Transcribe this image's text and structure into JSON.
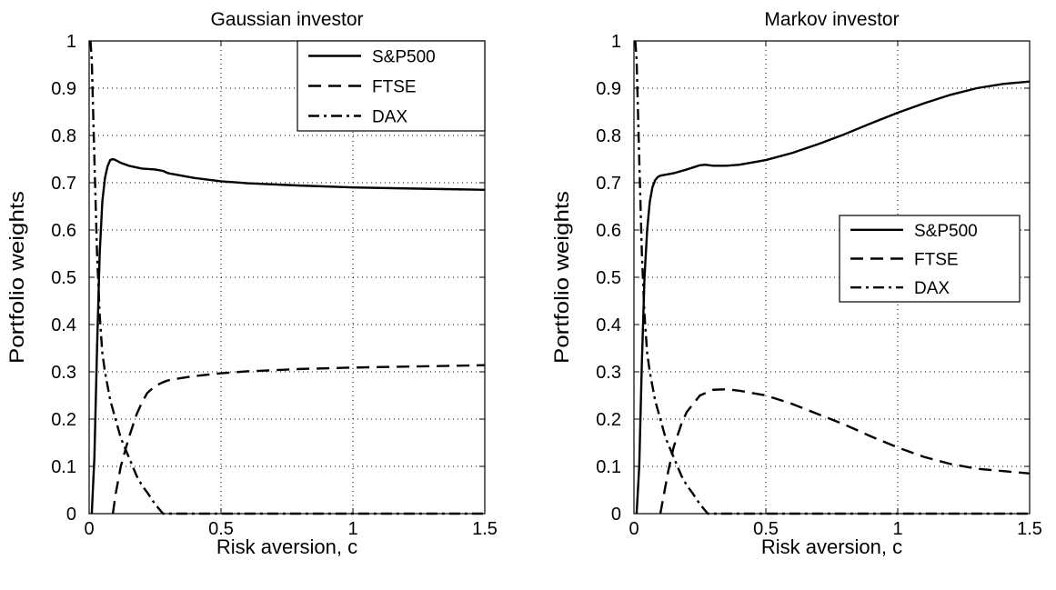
{
  "chart_data": [
    {
      "type": "line",
      "title": "Gaussian investor",
      "xlabel": "Risk aversion, c",
      "ylabel": "Portfolio weights",
      "xlim": [
        0,
        1.5
      ],
      "ylim": [
        0,
        1
      ],
      "xticks": [
        0,
        0.5,
        1,
        1.5
      ],
      "xtick_labels": [
        "0",
        "0.5",
        "1",
        "1.5"
      ],
      "yticks": [
        0,
        0.1,
        0.2,
        0.3,
        0.4,
        0.5,
        0.6,
        0.7,
        0.8,
        0.9,
        1
      ],
      "ytick_labels": [
        "0",
        "0.1",
        "0.2",
        "0.3",
        "0.4",
        "0.5",
        "0.6",
        "0.7",
        "0.8",
        "0.9",
        "1"
      ],
      "grid": true,
      "legend_position": "top-right",
      "series": [
        {
          "name": "S&P500",
          "style": "solid",
          "x": [
            0.01,
            0.02,
            0.03,
            0.04,
            0.05,
            0.06,
            0.07,
            0.08,
            0.09,
            0.1,
            0.12,
            0.15,
            0.2,
            0.25,
            0.28,
            0.3,
            0.4,
            0.5,
            0.6,
            0.8,
            1.0,
            1.2,
            1.5
          ],
          "y": [
            0.0,
            0.12,
            0.35,
            0.55,
            0.66,
            0.71,
            0.735,
            0.748,
            0.75,
            0.748,
            0.742,
            0.736,
            0.73,
            0.728,
            0.725,
            0.72,
            0.71,
            0.703,
            0.699,
            0.694,
            0.69,
            0.688,
            0.685
          ]
        },
        {
          "name": "FTSE",
          "style": "dashed",
          "x": [
            0.09,
            0.1,
            0.12,
            0.15,
            0.18,
            0.2,
            0.22,
            0.25,
            0.28,
            0.3,
            0.35,
            0.4,
            0.5,
            0.6,
            0.8,
            1.0,
            1.2,
            1.5
          ],
          "y": [
            0.0,
            0.04,
            0.1,
            0.16,
            0.21,
            0.235,
            0.255,
            0.27,
            0.278,
            0.282,
            0.287,
            0.291,
            0.297,
            0.301,
            0.306,
            0.309,
            0.311,
            0.314
          ]
        },
        {
          "name": "DAX",
          "style": "dashdot",
          "x": [
            0.005,
            0.01,
            0.02,
            0.03,
            0.04,
            0.05,
            0.06,
            0.08,
            0.1,
            0.12,
            0.15,
            0.18,
            0.2,
            0.22,
            0.25,
            0.28,
            0.3,
            0.5,
            1.0,
            1.5
          ],
          "y": [
            1.0,
            0.96,
            0.75,
            0.55,
            0.42,
            0.34,
            0.3,
            0.24,
            0.2,
            0.16,
            0.12,
            0.08,
            0.06,
            0.045,
            0.02,
            0.0,
            0.0,
            0.0,
            0.0,
            0.0
          ]
        }
      ]
    },
    {
      "type": "line",
      "title": "Markov investor",
      "xlabel": "Risk aversion, c",
      "ylabel": "Portfolio weights",
      "xlim": [
        0,
        1.5
      ],
      "ylim": [
        0,
        1
      ],
      "xticks": [
        0,
        0.5,
        1,
        1.5
      ],
      "xtick_labels": [
        "0",
        "0.5",
        "1",
        "1.5"
      ],
      "yticks": [
        0,
        0.1,
        0.2,
        0.3,
        0.4,
        0.5,
        0.6,
        0.7,
        0.8,
        0.9,
        1
      ],
      "ytick_labels": [
        "0",
        "0.1",
        "0.2",
        "0.3",
        "0.4",
        "0.5",
        "0.6",
        "0.7",
        "0.8",
        "0.9",
        "1"
      ],
      "grid": true,
      "legend_position": "center-right",
      "series": [
        {
          "name": "S&P500",
          "style": "solid",
          "x": [
            0.01,
            0.02,
            0.03,
            0.04,
            0.05,
            0.06,
            0.07,
            0.08,
            0.09,
            0.1,
            0.15,
            0.2,
            0.25,
            0.27,
            0.3,
            0.35,
            0.4,
            0.5,
            0.6,
            0.7,
            0.8,
            0.9,
            1.0,
            1.1,
            1.2,
            1.3,
            1.4,
            1.5
          ],
          "y": [
            0.0,
            0.1,
            0.32,
            0.5,
            0.6,
            0.66,
            0.69,
            0.705,
            0.712,
            0.715,
            0.72,
            0.728,
            0.737,
            0.738,
            0.736,
            0.736,
            0.738,
            0.748,
            0.763,
            0.782,
            0.803,
            0.826,
            0.848,
            0.868,
            0.886,
            0.9,
            0.909,
            0.914
          ]
        },
        {
          "name": "FTSE",
          "style": "dashed",
          "x": [
            0.1,
            0.11,
            0.13,
            0.15,
            0.18,
            0.2,
            0.25,
            0.3,
            0.35,
            0.4,
            0.5,
            0.6,
            0.7,
            0.8,
            0.9,
            1.0,
            1.1,
            1.2,
            1.3,
            1.4,
            1.5
          ],
          "y": [
            0.0,
            0.03,
            0.09,
            0.14,
            0.19,
            0.215,
            0.25,
            0.262,
            0.263,
            0.26,
            0.25,
            0.232,
            0.21,
            0.188,
            0.163,
            0.14,
            0.12,
            0.105,
            0.095,
            0.09,
            0.085
          ]
        },
        {
          "name": "DAX",
          "style": "dashdot",
          "x": [
            0.005,
            0.01,
            0.02,
            0.03,
            0.04,
            0.05,
            0.06,
            0.08,
            0.1,
            0.12,
            0.15,
            0.18,
            0.2,
            0.22,
            0.25,
            0.28,
            0.3,
            0.5,
            1.0,
            1.5
          ],
          "y": [
            1.0,
            0.96,
            0.75,
            0.55,
            0.42,
            0.34,
            0.3,
            0.24,
            0.2,
            0.16,
            0.12,
            0.08,
            0.06,
            0.045,
            0.02,
            0.0,
            0.0,
            0.0,
            0.0,
            0.0
          ]
        }
      ]
    }
  ]
}
